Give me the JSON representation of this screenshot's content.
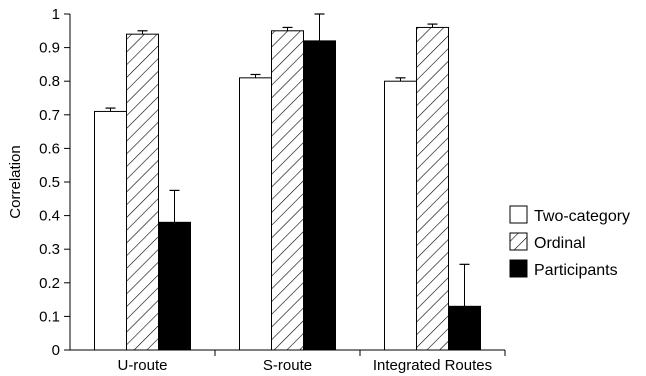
{
  "chart_data": {
    "type": "bar",
    "categories": [
      "U-route",
      "S-route",
      "Integrated Routes"
    ],
    "series": [
      {
        "name": "Two-category",
        "values": [
          0.71,
          0.81,
          0.8
        ],
        "errors": [
          0.01,
          0.01,
          0.01
        ],
        "fill": "white"
      },
      {
        "name": "Ordinal",
        "values": [
          0.94,
          0.95,
          0.96
        ],
        "errors": [
          0.01,
          0.01,
          0.01
        ],
        "fill": "hatch"
      },
      {
        "name": "Participants",
        "values": [
          0.38,
          0.92,
          0.13
        ],
        "errors": [
          0.095,
          0.08,
          0.125
        ],
        "fill": "black"
      }
    ],
    "title": "",
    "xlabel": "",
    "ylabel": "Correlation",
    "ylim": [
      0,
      1
    ],
    "yticks": [
      "0",
      "0.1",
      "0.2",
      "0.3",
      "0.4",
      "0.5",
      "0.6",
      "0.7",
      "0.8",
      "0.9",
      "1"
    ],
    "grid": false,
    "legend": "right"
  }
}
